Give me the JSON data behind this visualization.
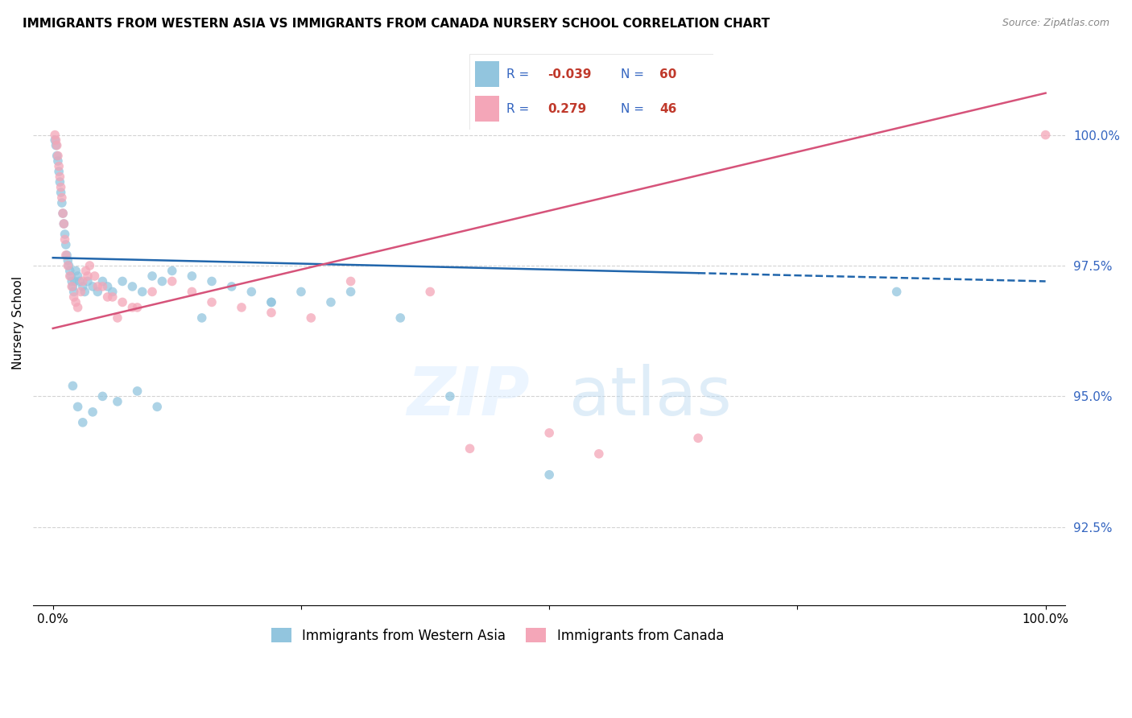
{
  "title": "IMMIGRANTS FROM WESTERN ASIA VS IMMIGRANTS FROM CANADA NURSERY SCHOOL CORRELATION CHART",
  "source": "Source: ZipAtlas.com",
  "ylabel": "Nursery School",
  "legend_label_1": "Immigrants from Western Asia",
  "legend_label_2": "Immigrants from Canada",
  "R1": "-0.039",
  "N1": "60",
  "R2": "0.279",
  "N2": "46",
  "blue_color": "#92c5de",
  "pink_color": "#f4a6b8",
  "blue_line_color": "#2166ac",
  "pink_line_color": "#d6537a",
  "xlim": [
    -2,
    102
  ],
  "ylim": [
    91.0,
    101.8
  ],
  "yticks": [
    92.5,
    95.0,
    97.5,
    100.0
  ],
  "ytick_labels": [
    "92.5%",
    "95.0%",
    "97.5%",
    "100.0%"
  ],
  "blue_trend_start_y": 97.65,
  "blue_trend_end_y": 97.2,
  "blue_trend_solid_end_x": 65,
  "pink_trend_start_y": 96.3,
  "pink_trend_end_y": 100.8,
  "blue_scatter_x": [
    0.2,
    0.3,
    0.4,
    0.5,
    0.6,
    0.7,
    0.8,
    0.9,
    1.0,
    1.1,
    1.2,
    1.3,
    1.4,
    1.5,
    1.6,
    1.7,
    1.8,
    1.9,
    2.0,
    2.1,
    2.2,
    2.3,
    2.5,
    2.7,
    3.0,
    3.2,
    3.5,
    4.0,
    4.5,
    5.0,
    5.5,
    6.0,
    7.0,
    8.0,
    9.0,
    10.0,
    11.0,
    12.0,
    14.0,
    16.0,
    18.0,
    20.0,
    22.0,
    25.0,
    28.0,
    30.0,
    35.0,
    40.0,
    50.0,
    85.0,
    2.0,
    2.5,
    3.0,
    4.0,
    5.0,
    6.5,
    8.5,
    10.5,
    15.0,
    22.0
  ],
  "blue_scatter_y": [
    99.9,
    99.8,
    99.6,
    99.5,
    99.3,
    99.1,
    98.9,
    98.7,
    98.5,
    98.3,
    98.1,
    97.9,
    97.7,
    97.6,
    97.5,
    97.4,
    97.3,
    97.2,
    97.1,
    97.0,
    97.2,
    97.4,
    97.3,
    97.2,
    97.1,
    97.0,
    97.2,
    97.1,
    97.0,
    97.2,
    97.1,
    97.0,
    97.2,
    97.1,
    97.0,
    97.3,
    97.2,
    97.4,
    97.3,
    97.2,
    97.1,
    97.0,
    96.8,
    97.0,
    96.8,
    97.0,
    96.5,
    95.0,
    93.5,
    97.0,
    95.2,
    94.8,
    94.5,
    94.7,
    95.0,
    94.9,
    95.1,
    94.8,
    96.5,
    96.8
  ],
  "pink_scatter_x": [
    0.2,
    0.3,
    0.4,
    0.5,
    0.6,
    0.7,
    0.8,
    0.9,
    1.0,
    1.1,
    1.2,
    1.3,
    1.5,
    1.7,
    1.9,
    2.1,
    2.3,
    2.5,
    2.8,
    3.0,
    3.3,
    3.7,
    4.2,
    5.0,
    6.0,
    7.0,
    8.0,
    10.0,
    12.0,
    14.0,
    16.0,
    19.0,
    22.0,
    26.0,
    30.0,
    38.0,
    42.0,
    50.0,
    55.0,
    65.0,
    100.0,
    3.5,
    4.5,
    5.5,
    6.5,
    8.5
  ],
  "pink_scatter_y": [
    100.0,
    99.9,
    99.8,
    99.6,
    99.4,
    99.2,
    99.0,
    98.8,
    98.5,
    98.3,
    98.0,
    97.7,
    97.5,
    97.3,
    97.1,
    96.9,
    96.8,
    96.7,
    97.0,
    97.2,
    97.4,
    97.5,
    97.3,
    97.1,
    96.9,
    96.8,
    96.7,
    97.0,
    97.2,
    97.0,
    96.8,
    96.7,
    96.6,
    96.5,
    97.2,
    97.0,
    94.0,
    94.3,
    93.9,
    94.2,
    100.0,
    97.3,
    97.1,
    96.9,
    96.5,
    96.7
  ]
}
